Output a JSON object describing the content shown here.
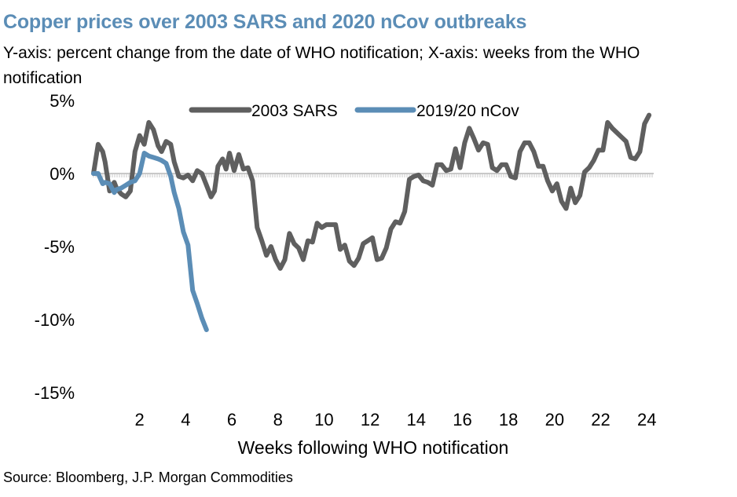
{
  "title": "Copper prices over 2003 SARS and 2020 nCov outbreaks",
  "subtitle": "Y-axis: percent change from the date of WHO notification; X-axis: weeks from the WHO notification",
  "source": "Source: Bloomberg, J.P. Morgan Commodities",
  "chart_data": {
    "type": "line",
    "title": "Copper prices over 2003 SARS and 2020 nCov outbreaks",
    "xlabel": "Weeks following WHO notification",
    "ylabel": "percent change from the date of WHO notification",
    "xlim": [
      0,
      24.3
    ],
    "ylim": [
      -15,
      5
    ],
    "x_ticks": [
      2,
      4,
      6,
      8,
      10,
      12,
      14,
      16,
      18,
      20,
      22,
      24
    ],
    "x_tick_labels": [
      "2",
      "4",
      "6",
      "8",
      "10",
      "12",
      "14",
      "16",
      "18",
      "20",
      "22",
      "24"
    ],
    "y_ticks": [
      5,
      0,
      -5,
      -10,
      -15
    ],
    "y_tick_labels": [
      "5%",
      "0%",
      "-5%",
      "-10%",
      "-15%"
    ],
    "legend_position": "top",
    "series": [
      {
        "name": "2003 SARS",
        "color": "#5f5f5f",
        "x": [
          0,
          0.2,
          0.4,
          0.5,
          0.7,
          0.9,
          1.0,
          1.2,
          1.4,
          1.6,
          1.8,
          2.0,
          2.2,
          2.4,
          2.6,
          2.8,
          2.95,
          3.15,
          3.35,
          3.5,
          3.7,
          3.9,
          4.1,
          4.3,
          4.5,
          4.7,
          4.9,
          5.1,
          5.25,
          5.4,
          5.6,
          5.75,
          5.9,
          6.1,
          6.3,
          6.5,
          6.7,
          6.9,
          7.1,
          7.3,
          7.5,
          7.7,
          7.9,
          8.1,
          8.3,
          8.5,
          8.7,
          8.9,
          9.1,
          9.3,
          9.5,
          9.7,
          9.9,
          10.1,
          10.3,
          10.5,
          10.7,
          10.9,
          11.1,
          11.3,
          11.5,
          11.7,
          11.9,
          12.1,
          12.3,
          12.5,
          12.7,
          12.9,
          13.1,
          13.3,
          13.5,
          13.7,
          13.9,
          14.1,
          14.3,
          14.5,
          14.7,
          14.9,
          15.1,
          15.3,
          15.5,
          15.7,
          15.9,
          16.1,
          16.3,
          16.5,
          16.7,
          16.9,
          17.1,
          17.3,
          17.5,
          17.7,
          17.9,
          18.1,
          18.3,
          18.5,
          18.7,
          18.9,
          19.1,
          19.3,
          19.5,
          19.7,
          19.9,
          20.1,
          20.3,
          20.5,
          20.7,
          20.9,
          21.1,
          21.3,
          21.5,
          21.7,
          21.9,
          22.1,
          22.3,
          22.5,
          22.7,
          22.9,
          23.1,
          23.3,
          23.5,
          23.7,
          23.9,
          24.1
        ],
        "values": [
          0,
          2,
          1.5,
          0.8,
          -1.2,
          -0.6,
          -1.0,
          -1.4,
          -1.6,
          -1.2,
          1.5,
          2.6,
          2.0,
          3.5,
          3.0,
          1.9,
          1.5,
          2.2,
          2.0,
          0.8,
          -0.2,
          -0.3,
          -0.1,
          -0.5,
          0.2,
          0.0,
          -0.8,
          -1.6,
          -1.2,
          0.5,
          1.0,
          0.3,
          1.4,
          0.2,
          1.3,
          0.3,
          0.4,
          -0.5,
          -3.7,
          -4.6,
          -5.6,
          -5.0,
          -5.9,
          -6.5,
          -5.9,
          -4.1,
          -4.8,
          -5.1,
          -5.9,
          -4.6,
          -4.7,
          -3.4,
          -3.7,
          -3.5,
          -3.5,
          -3.5,
          -5.2,
          -4.9,
          -6.0,
          -6.3,
          -5.8,
          -4.8,
          -4.6,
          -4.4,
          -5.9,
          -5.8,
          -5.1,
          -3.8,
          -3.3,
          -3.4,
          -2.6,
          -0.4,
          -0.2,
          -0.1,
          -0.5,
          -0.6,
          -0.8,
          0.6,
          0.6,
          0.2,
          0.3,
          1.7,
          0.4,
          2.1,
          3.1,
          2.4,
          1.6,
          2.1,
          2.0,
          0.4,
          0.2,
          0.6,
          0.6,
          -0.2,
          -0.3,
          1.5,
          2.1,
          2.1,
          1.5,
          0.5,
          0.5,
          -0.5,
          -1.2,
          -0.7,
          -1.9,
          -2.4,
          -1.0,
          -2.0,
          -1.5,
          0.1,
          0.4,
          0.9,
          1.6,
          1.6,
          3.5,
          3.1,
          2.8,
          2.5,
          2.2,
          1.1,
          1.0,
          1.5,
          3.4,
          4.0
        ]
      },
      {
        "name": "2019/20 nCov",
        "color": "#5b8db6",
        "x": [
          0,
          0.2,
          0.4,
          0.5,
          0.7,
          0.9,
          1.0,
          1.2,
          1.4,
          1.6,
          1.8,
          2.0,
          2.2,
          2.4,
          2.6,
          2.8,
          2.95,
          3.15,
          3.35,
          3.5,
          3.7,
          3.9,
          4.1,
          4.3,
          4.5,
          4.7,
          4.9
        ],
        "values": [
          0,
          0,
          -0.7,
          -0.6,
          -0.7,
          -1.3,
          -1.1,
          -1.0,
          -0.8,
          -0.6,
          -0.5,
          0.0,
          1.4,
          1.2,
          1.1,
          1.0,
          0.9,
          0.7,
          -0.2,
          -1.3,
          -2.4,
          -4.0,
          -4.9,
          -8.0,
          -8.9,
          -9.9,
          -10.7
        ]
      }
    ],
    "baseline_value": 0
  }
}
